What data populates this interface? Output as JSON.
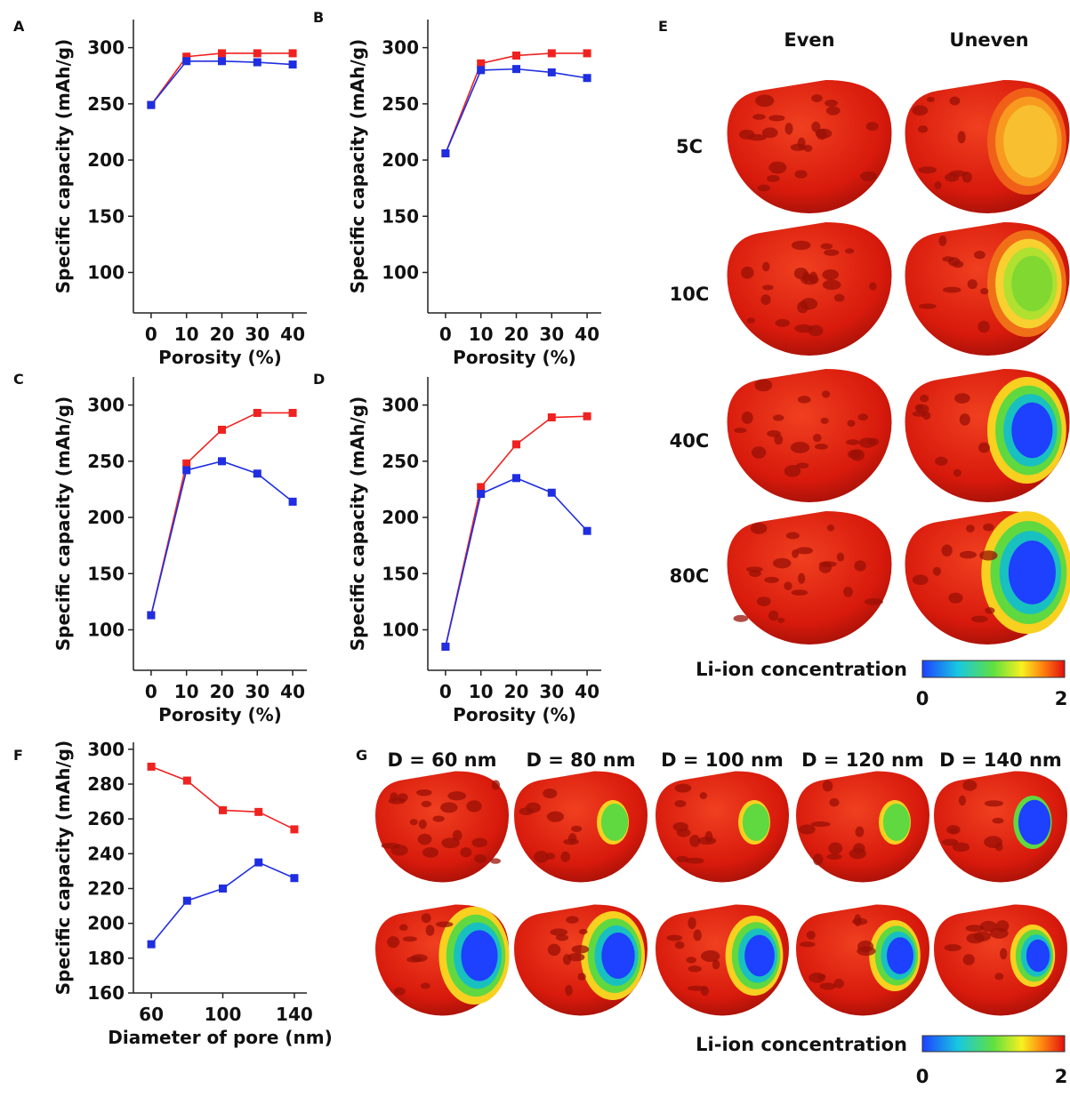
{
  "chart_data": [
    {
      "type": "line",
      "panel": "A",
      "xlabel": "Porosity (%)",
      "ylabel": "Specific capacity (mAh/g)",
      "x": [
        0,
        10,
        20,
        30,
        40
      ],
      "xlim": [
        -5,
        44
      ],
      "xticks": [
        0,
        10,
        20,
        30,
        40
      ],
      "ylim": [
        64,
        325
      ],
      "yticks": [
        100,
        150,
        200,
        250,
        300
      ],
      "series": [
        {
          "color": "#ef2220",
          "values": [
            249,
            292,
            295,
            295,
            295
          ]
        },
        {
          "color": "#1f2ee0",
          "values": [
            249,
            288,
            288,
            287,
            285
          ]
        }
      ]
    },
    {
      "type": "line",
      "panel": "B",
      "xlabel": "Porosity (%)",
      "ylabel": "Specific capacity (mAh/g)",
      "x": [
        0,
        10,
        20,
        30,
        40
      ],
      "xlim": [
        -5,
        44
      ],
      "xticks": [
        0,
        10,
        20,
        30,
        40
      ],
      "ylim": [
        64,
        325
      ],
      "yticks": [
        100,
        150,
        200,
        250,
        300
      ],
      "series": [
        {
          "color": "#ef2220",
          "values": [
            206,
            286,
            293,
            295,
            295
          ]
        },
        {
          "color": "#1f2ee0",
          "values": [
            206,
            280,
            281,
            278,
            273
          ]
        }
      ]
    },
    {
      "type": "line",
      "panel": "C",
      "xlabel": "Porosity (%)",
      "ylabel": "Specific capacity (mAh/g)",
      "x": [
        0,
        10,
        20,
        30,
        40
      ],
      "xlim": [
        -5,
        44
      ],
      "xticks": [
        0,
        10,
        20,
        30,
        40
      ],
      "ylim": [
        64,
        325
      ],
      "yticks": [
        100,
        150,
        200,
        250,
        300
      ],
      "series": [
        {
          "color": "#ef2220",
          "values": [
            113,
            248,
            278,
            293,
            293
          ]
        },
        {
          "color": "#1f2ee0",
          "values": [
            113,
            242,
            250,
            239,
            214
          ]
        }
      ]
    },
    {
      "type": "line",
      "panel": "D",
      "xlabel": "Porosity (%)",
      "ylabel": "Specific capacity (mAh/g)",
      "x": [
        0,
        10,
        20,
        30,
        40
      ],
      "xlim": [
        -5,
        44
      ],
      "xticks": [
        0,
        10,
        20,
        30,
        40
      ],
      "ylim": [
        64,
        325
      ],
      "yticks": [
        100,
        150,
        200,
        250,
        300
      ],
      "series": [
        {
          "color": "#ef2220",
          "values": [
            85,
            227,
            265,
            289,
            290
          ]
        },
        {
          "color": "#1f2ee0",
          "values": [
            85,
            221,
            235,
            222,
            188
          ]
        }
      ]
    },
    {
      "type": "line",
      "panel": "F",
      "xlabel": "Diameter of pore (nm)",
      "ylabel": "Specific capacity (mAh/g)",
      "x": [
        60,
        80,
        100,
        120,
        140
      ],
      "xlim": [
        50,
        147
      ],
      "xticks": [
        60,
        100,
        140
      ],
      "ylim": [
        160,
        304
      ],
      "yticks": [
        160,
        180,
        200,
        220,
        240,
        260,
        280,
        300
      ],
      "series": [
        {
          "color": "#ef2220",
          "values": [
            290,
            282,
            265,
            264,
            254
          ]
        },
        {
          "color": "#1f2ee0",
          "values": [
            188,
            213,
            220,
            235,
            226
          ]
        }
      ]
    }
  ],
  "panel_e": {
    "panel": "E",
    "columns": [
      "Even",
      "Uneven"
    ],
    "rows": [
      "5C",
      "10C",
      "40C",
      "80C"
    ],
    "colorbar": {
      "title": "Li-ion concentration",
      "min": "0",
      "max": "2"
    }
  },
  "panel_g": {
    "panel": "G",
    "columns": [
      "D = 60 nm",
      "D = 80 nm",
      "D = 100 nm",
      "D = 120 nm",
      "D = 140 nm"
    ],
    "colorbar": {
      "title": "Li-ion concentration",
      "min": "0",
      "max": "2"
    }
  }
}
